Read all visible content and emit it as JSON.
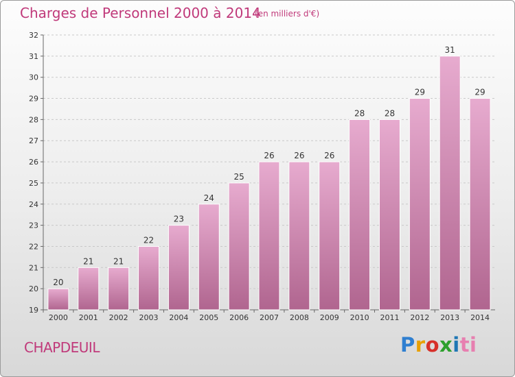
{
  "title": "Charges de Personnel 2000 à 2014",
  "subtitle": "(en milliers d'€)",
  "commune": "CHAPDEUIL",
  "logo": [
    "P",
    "r",
    "o",
    "x",
    "i",
    "ti"
  ],
  "chart_data": {
    "type": "bar",
    "categories": [
      "2000",
      "2001",
      "2002",
      "2003",
      "2004",
      "2005",
      "2006",
      "2007",
      "2008",
      "2009",
      "2010",
      "2011",
      "2012",
      "2013",
      "2014"
    ],
    "values": [
      20,
      21,
      21,
      22,
      23,
      24,
      25,
      26,
      26,
      26,
      28,
      28,
      29,
      31,
      29
    ],
    "ylim": [
      19,
      32
    ],
    "yticks": [
      19,
      20,
      21,
      22,
      23,
      24,
      25,
      26,
      27,
      28,
      29,
      30,
      31,
      32
    ],
    "grid": true,
    "bar_color": "#d98fb8",
    "accent": "#c0397a"
  }
}
